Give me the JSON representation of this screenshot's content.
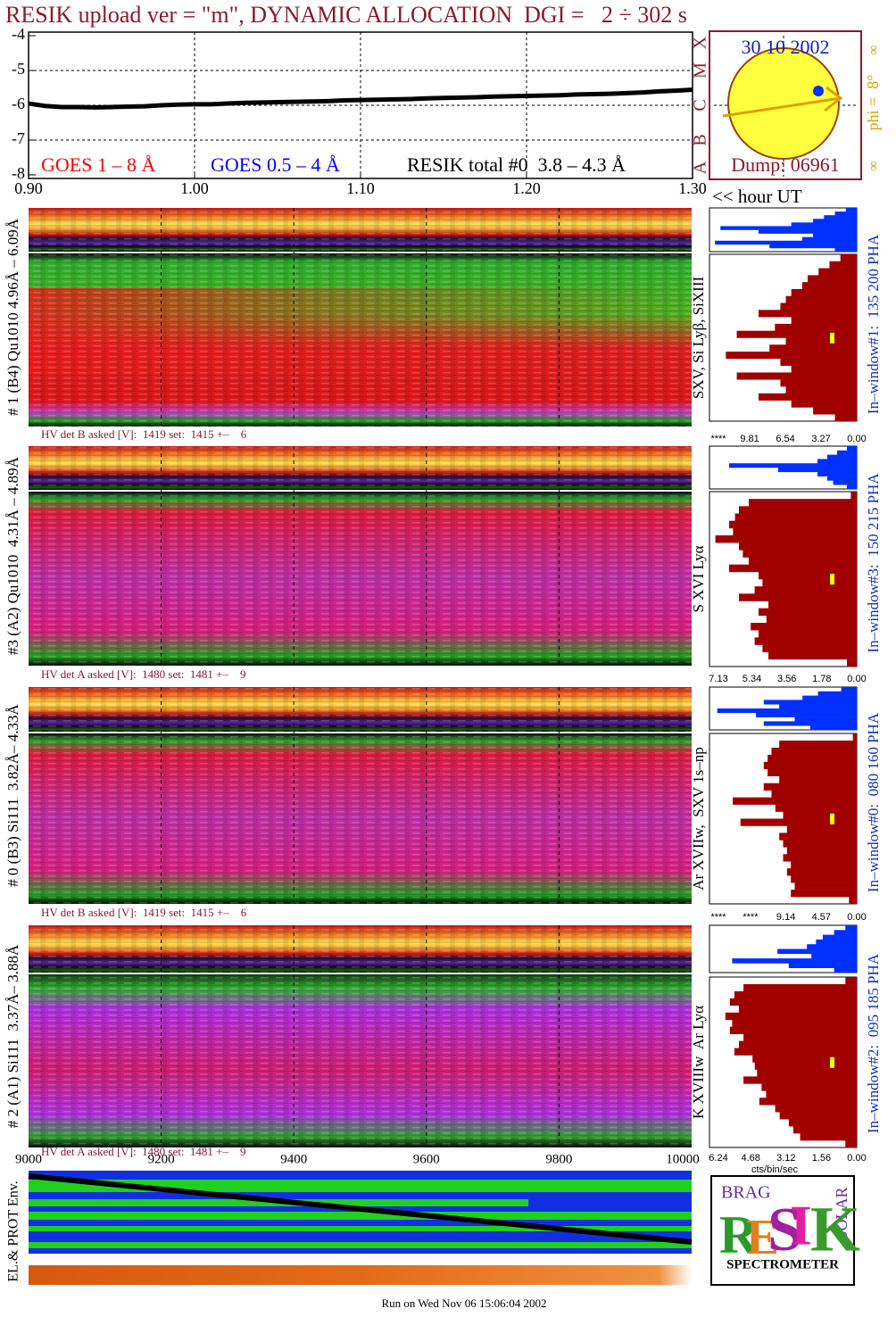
{
  "title": "RESIK upload ver = \"m\", DYNAMIC ALLOCATION  DGI =   2 ÷ 302 s",
  "sun_panel": {
    "date": "30 10 2002",
    "dump": "Dump: 06961",
    "phi": "phi =  8°",
    "marks": [
      "∞",
      "∞"
    ]
  },
  "logo": {
    "letters": [
      "R",
      "E",
      "S",
      "I",
      "K"
    ],
    "top": "BRAG",
    "side": "SOLAR",
    "caption": "SPECTROMETER"
  },
  "footer": "Run on Wed Nov 06 15:06:04 2002",
  "chart_data": [
    {
      "type": "line",
      "x_label": "<< hour UT",
      "x": [
        0.9,
        0.91,
        0.92,
        0.93,
        0.94,
        0.95,
        0.96,
        0.97,
        0.98,
        0.99,
        1.0,
        1.01,
        1.02,
        1.03,
        1.04,
        1.05,
        1.06,
        1.07,
        1.08,
        1.09,
        1.1,
        1.11,
        1.12,
        1.13,
        1.14,
        1.15,
        1.16,
        1.17,
        1.18,
        1.19,
        1.2,
        1.21,
        1.22,
        1.23,
        1.24,
        1.25,
        1.26,
        1.27,
        1.28,
        1.29,
        1.3
      ],
      "xlim": [
        0.9,
        1.3
      ],
      "xticks": [
        {
          "value": 0.9,
          "label": "0.90"
        },
        {
          "value": 1.0,
          "label": "1.00"
        },
        {
          "value": 1.1,
          "label": "1.10"
        },
        {
          "value": 1.2,
          "label": "1.20"
        },
        {
          "value": 1.3,
          "label": "1.30"
        }
      ],
      "ylim": [
        -8,
        -4
      ],
      "yticks": [
        -8,
        -7,
        -6,
        -5,
        -4
      ],
      "y2ticks": [
        {
          "value": -4,
          "label": "X"
        },
        {
          "value": -5,
          "label": "M"
        },
        {
          "value": -6,
          "label": "C"
        },
        {
          "value": -7,
          "label": "B"
        },
        {
          "value": -8,
          "label": "A"
        }
      ],
      "grid": true,
      "legend_labels": [
        {
          "name": "GOES 1 – 8 Å",
          "color": "#ff0000"
        },
        {
          "name": "GOES 0.5 – 4 Å",
          "color": "#0000ff"
        }
      ],
      "series": [
        {
          "name": "RESIK total #0  3.8 – 4.3 Å",
          "color": "#000000",
          "values": [
            -5.95,
            -6.02,
            -6.05,
            -6.05,
            -6.06,
            -6.05,
            -6.04,
            -6.03,
            -6.0,
            -5.98,
            -5.97,
            -5.97,
            -5.95,
            -5.93,
            -5.92,
            -5.91,
            -5.9,
            -5.89,
            -5.88,
            -5.86,
            -5.85,
            -5.84,
            -5.83,
            -5.82,
            -5.8,
            -5.79,
            -5.78,
            -5.77,
            -5.75,
            -5.74,
            -5.73,
            -5.72,
            -5.71,
            -5.69,
            -5.68,
            -5.67,
            -5.65,
            -5.63,
            -5.6,
            -5.58,
            -5.55
          ]
        }
      ]
    },
    {
      "type": "histogram-h",
      "label": "# 1 (B4) Qu1010 4.96Å – 6.09Å",
      "hv_text": "HV det B asked [V]:  1419 set:  1415 +–    6",
      "line_label": "SXV, Si Lyβ, SiXIII",
      "window_label": "In–window#1:  135 200 PHA",
      "xlim": [
        0,
        13.5
      ],
      "xticks": [
        {
          "value": 13.08,
          "label": "****"
        },
        9.81,
        6.54,
        3.27,
        {
          "value": 0,
          "label": "0.00"
        }
      ],
      "color": "#a00000",
      "strip_color": "#0030ff",
      "strip_values": [
        1,
        2,
        3,
        4,
        6,
        12.5,
        9,
        4,
        5,
        13,
        8,
        2
      ],
      "values": [
        1.5,
        2.5,
        3.5,
        4.5,
        5,
        6,
        6.5,
        7,
        9,
        6,
        7.5,
        11,
        6.5,
        8,
        12,
        7,
        6,
        11,
        7,
        6.5,
        9,
        6,
        4,
        2
      ]
    },
    {
      "type": "histogram-h",
      "label": "#3 (A2) Qu1010  4.31Å – 4.89Å",
      "hv_text": "HV det A asked [V]:  1480 set:  1481 +–    9",
      "line_label": "S XVI Lyα",
      "window_label": "In–window#3:  150 215 PHA",
      "xlim": [
        0,
        7.5
      ],
      "xticks": [
        7.13,
        5.34,
        3.56,
        1.78,
        {
          "value": 0,
          "label": "0.00"
        }
      ],
      "color": "#a00000",
      "strip_color": "#0030ff",
      "strip_values": [
        0.5,
        1,
        1.5,
        2,
        6.5,
        4,
        2,
        1.5,
        1.2,
        0.5
      ],
      "values": [
        0.3,
        5.5,
        6,
        6.2,
        6.5,
        6.3,
        7.2,
        6,
        5.8,
        5.5,
        6.5,
        5,
        4.8,
        5.2,
        6,
        4.5,
        5,
        4.6,
        5.4,
        5,
        5.2,
        4.8,
        4.5,
        0.5
      ]
    },
    {
      "type": "histogram-h",
      "label": "# 0 (B3) Si111  3.82Å– 4.33Å",
      "hv_text": "HV det B asked [V]:  1419 set:  1415 +–    6",
      "line_label": "Ar XVIIw,  SXV 1s–np",
      "window_label": "In–window#0:  080 160 PHA",
      "xlim": [
        0,
        19
      ],
      "xticks": [
        {
          "value": 18.28,
          "label": "****"
        },
        {
          "value": 13.71,
          "label": "****"
        },
        9.14,
        4.57,
        {
          "value": 0,
          "label": "0.00"
        }
      ],
      "color": "#a00000",
      "strip_color": "#0030ff",
      "strip_values": [
        2,
        5,
        7,
        12,
        10,
        18,
        13,
        8,
        12,
        6
      ],
      "values": [
        0.5,
        10,
        11,
        11.5,
        12,
        11.5,
        10,
        12,
        11,
        16,
        10.5,
        9.5,
        15,
        9,
        10,
        9.5,
        9,
        9.5,
        8.5,
        9,
        8.5,
        8,
        8.5,
        1
      ]
    },
    {
      "type": "histogram-h",
      "label": "# 2 (A1) Si111  3.37Å– 3.88Å",
      "hv_text": "HV det A asked [V]:  1480 set:  1481 +–    9",
      "line_label": "K XVIIIw  Ar Lyα",
      "window_label": "In–window#2:  095 185 PHA",
      "x_label": "cts/bin/sec",
      "xlim": [
        0,
        6.5
      ],
      "xticks": [
        6.24,
        4.68,
        3.12,
        1.56,
        {
          "value": 0,
          "label": "0.00"
        }
      ],
      "color": "#a00000",
      "strip_color": "#0030ff",
      "strip_values": [
        0.5,
        1,
        1.5,
        1.8,
        2.2,
        3.5,
        2,
        5.5,
        3,
        1
      ],
      "values": [
        0.5,
        5,
        5.4,
        5.6,
        5.2,
        5.8,
        5.5,
        5.6,
        5,
        5.2,
        5.4,
        4.6,
        4.5,
        4.4,
        5,
        4.2,
        4,
        4.3,
        3.6,
        3.4,
        3,
        2.8,
        2.5,
        0.5
      ]
    },
    {
      "type": "image",
      "y_label": "EL.& PROT Env.",
      "xlim": [
        9000,
        10000
      ],
      "xticks": [
        9000,
        9200,
        9400,
        9600,
        9800,
        10000
      ],
      "grid": true
    }
  ]
}
